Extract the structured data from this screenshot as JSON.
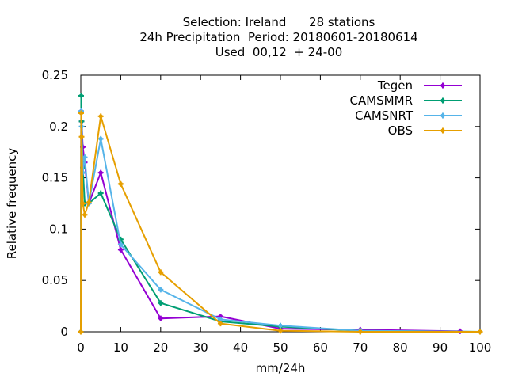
{
  "chart_data": {
    "type": "line",
    "title_lines": [
      "Selection: Ireland      28 stations",
      "24h Precipitation  Period: 20180601-20180614",
      "Used  00,12  + 24-00"
    ],
    "xlabel": "mm/24h",
    "ylabel": "Relative frequency",
    "xlim": [
      0,
      100
    ],
    "ylim": [
      0,
      0.25
    ],
    "xticks": [
      "0",
      "10",
      "20",
      "30",
      "40",
      "50",
      "60",
      "70",
      "80",
      "90",
      "100"
    ],
    "yticks": [
      "0",
      "0.05",
      "0.1",
      "0.15",
      "0.2",
      "0.25"
    ],
    "grid": false,
    "legend_position": "top-right",
    "series": [
      {
        "name": "Tegen",
        "color": "#9400d3",
        "points": [
          [
            0,
            0
          ],
          [
            0.1,
            0.215
          ],
          [
            0.2,
            0.205
          ],
          [
            0.5,
            0.18
          ],
          [
            1,
            0.165
          ],
          [
            2,
            0.125
          ],
          [
            5,
            0.155
          ],
          [
            10,
            0.08
          ],
          [
            20,
            0.013
          ],
          [
            35,
            0.015
          ],
          [
            50,
            0.003
          ],
          [
            70,
            0.002
          ],
          [
            95,
            0.0005
          ]
        ]
      },
      {
        "name": "CAMSMMR",
        "color": "#009e73",
        "points": [
          [
            0,
            0
          ],
          [
            0.1,
            0.23
          ],
          [
            0.2,
            0.205
          ],
          [
            0.5,
            0.16
          ],
          [
            1,
            0.125
          ],
          [
            2,
            0.125
          ],
          [
            5,
            0.135
          ],
          [
            10,
            0.09
          ],
          [
            20,
            0.028
          ],
          [
            35,
            0.01
          ],
          [
            50,
            0.005
          ],
          [
            70,
            0.001
          ],
          [
            100,
            0
          ]
        ]
      },
      {
        "name": "CAMSNRT",
        "color": "#56b4e9",
        "points": [
          [
            0,
            0
          ],
          [
            0.1,
            0.215
          ],
          [
            0.2,
            0.2
          ],
          [
            0.5,
            0.155
          ],
          [
            1,
            0.17
          ],
          [
            2,
            0.125
          ],
          [
            5,
            0.188
          ],
          [
            10,
            0.085
          ],
          [
            20,
            0.041
          ],
          [
            35,
            0.012
          ],
          [
            50,
            0.006
          ],
          [
            70,
            0.001
          ],
          [
            100,
            0
          ]
        ]
      },
      {
        "name": "OBS",
        "color": "#e69f00",
        "points": [
          [
            0,
            0
          ],
          [
            0.1,
            0.213
          ],
          [
            0.2,
            0.19
          ],
          [
            0.5,
            0.125
          ],
          [
            1,
            0.114
          ],
          [
            2,
            0.126
          ],
          [
            5,
            0.21
          ],
          [
            10,
            0.144
          ],
          [
            20,
            0.058
          ],
          [
            35,
            0.008
          ],
          [
            50,
            0.001
          ],
          [
            70,
            0
          ],
          [
            100,
            0
          ]
        ]
      }
    ]
  }
}
